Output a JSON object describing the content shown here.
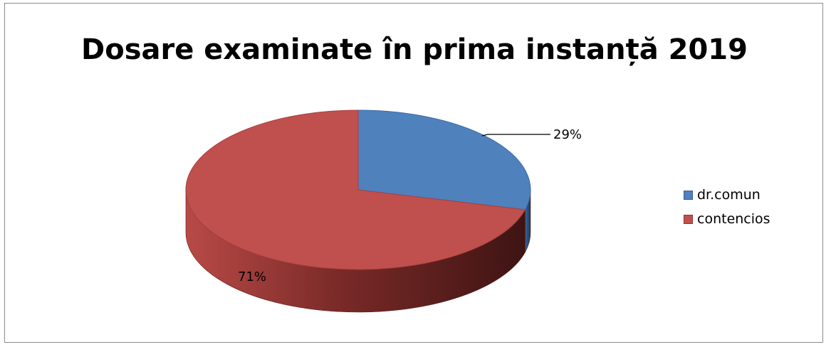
{
  "chart_data": {
    "type": "pie",
    "title": "Dosare examinate în prima instanță 2019",
    "categories": [
      "dr.comun",
      "contencios"
    ],
    "values": [
      29,
      71
    ],
    "labels": [
      "29%",
      "71%"
    ],
    "colors": [
      "#4f81bd",
      "#c0504d"
    ],
    "legend_position": "right",
    "three_d": true
  }
}
